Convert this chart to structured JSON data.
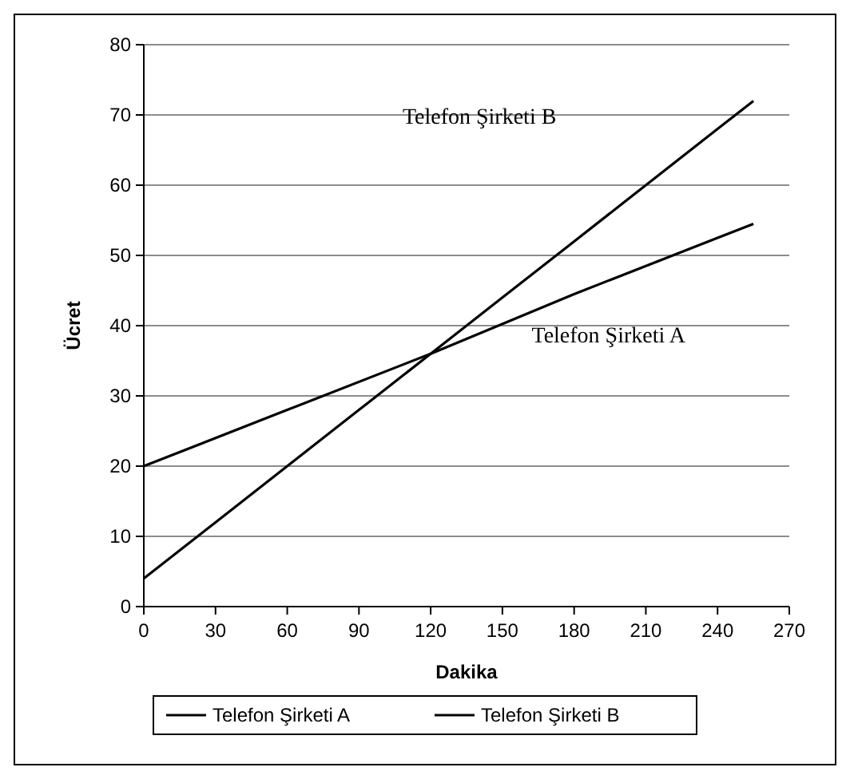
{
  "chart_data": {
    "type": "line",
    "xlabel": "Dakika",
    "ylabel": "Ücret",
    "xlim": [
      0,
      270
    ],
    "xticks": [
      0,
      30,
      60,
      90,
      120,
      150,
      180,
      210,
      240,
      270
    ],
    "ylim": [
      0,
      80
    ],
    "yticks": [
      0,
      10,
      20,
      30,
      40,
      50,
      60,
      70,
      80
    ],
    "grid": "y",
    "legend": "bottom",
    "marker": "none",
    "line_style": "solid",
    "series": [
      {
        "name": "Telefon Şirketi A",
        "color": "#000000",
        "x": [
          0,
          60,
          120,
          180,
          240,
          255
        ],
        "values": [
          20,
          28,
          36,
          44.5,
          52.5,
          54.5
        ]
      },
      {
        "name": "Telefon Şirketi B",
        "color": "#000000",
        "x": [
          0,
          30,
          60,
          90,
          120,
          150,
          180,
          210,
          240,
          255
        ],
        "values": [
          4,
          12,
          20,
          28,
          36,
          44,
          52,
          60,
          68,
          72
        ]
      }
    ]
  }
}
